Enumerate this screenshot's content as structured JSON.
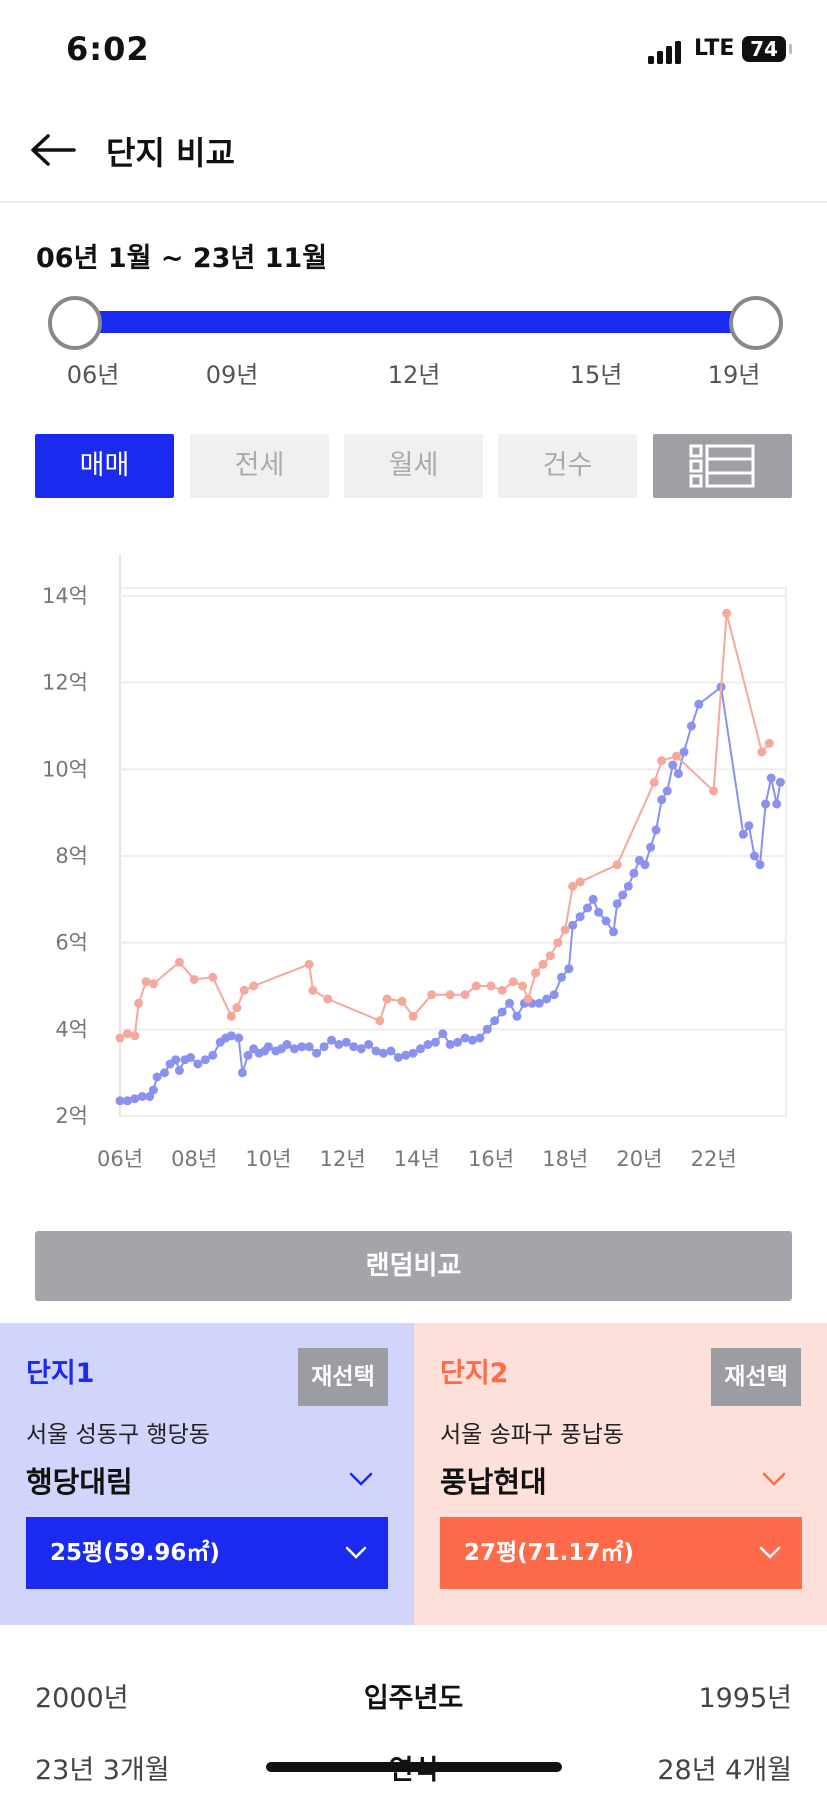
{
  "status": {
    "time": "6:02",
    "network": "LTE",
    "battery": "74"
  },
  "header": {
    "title": "단지 비교"
  },
  "range": {
    "label": "06년 1월 ~ 23년 11월",
    "ticks": [
      "06년",
      "09년",
      "12년",
      "15년",
      "19년"
    ],
    "start_fraction": 0.0,
    "end_fraction": 1.0
  },
  "tabs": [
    {
      "label": "매매",
      "active": true
    },
    {
      "label": "전세",
      "active": false
    },
    {
      "label": "월세",
      "active": false
    },
    {
      "label": "건수",
      "active": false
    }
  ],
  "colors": {
    "accent": "#1b2af0",
    "complex1": "#8a91ee",
    "complex2": "#f4a99c",
    "complex2_accent": "#ff6a4a"
  },
  "chart_data": {
    "type": "line",
    "x_tick_labels": [
      "06년",
      "08년",
      "10년",
      "12년",
      "14년",
      "16년",
      "18년",
      "20년",
      "22년"
    ],
    "y_tick_labels": [
      "2억",
      "4억",
      "6억",
      "8억",
      "10억",
      "12억",
      "14억"
    ],
    "x_ticks": [
      2006,
      2008,
      2010,
      2012,
      2014,
      2016,
      2018,
      2020,
      2022
    ],
    "y_ticks": [
      2,
      4,
      6,
      8,
      10,
      12,
      14
    ],
    "xlim": [
      2006.0,
      2023.95
    ],
    "ylim": [
      2,
      14
    ],
    "grid": true,
    "series": [
      {
        "points": [
          [
            2006.0,
            2.35
          ],
          [
            2006.2,
            2.35
          ],
          [
            2006.4,
            2.4
          ],
          [
            2006.6,
            2.45
          ],
          [
            2006.8,
            2.45
          ],
          [
            2006.9,
            2.6
          ],
          [
            2007.0,
            2.9
          ],
          [
            2007.2,
            3.0
          ],
          [
            2007.35,
            3.2
          ],
          [
            2007.5,
            3.3
          ],
          [
            2007.6,
            3.05
          ],
          [
            2007.75,
            3.3
          ],
          [
            2007.9,
            3.35
          ],
          [
            2008.1,
            3.2
          ],
          [
            2008.3,
            3.3
          ],
          [
            2008.5,
            3.4
          ],
          [
            2008.7,
            3.7
          ],
          [
            2008.85,
            3.8
          ],
          [
            2009.0,
            3.85
          ],
          [
            2009.2,
            3.8
          ],
          [
            2009.3,
            3.0
          ],
          [
            2009.45,
            3.4
          ],
          [
            2009.6,
            3.55
          ],
          [
            2009.75,
            3.45
          ],
          [
            2009.9,
            3.5
          ],
          [
            2010.0,
            3.6
          ],
          [
            2010.2,
            3.5
          ],
          [
            2010.35,
            3.55
          ],
          [
            2010.5,
            3.65
          ],
          [
            2010.7,
            3.55
          ],
          [
            2010.9,
            3.6
          ],
          [
            2011.1,
            3.6
          ],
          [
            2011.3,
            3.45
          ],
          [
            2011.5,
            3.6
          ],
          [
            2011.7,
            3.75
          ],
          [
            2011.9,
            3.65
          ],
          [
            2012.1,
            3.7
          ],
          [
            2012.3,
            3.6
          ],
          [
            2012.5,
            3.55
          ],
          [
            2012.7,
            3.65
          ],
          [
            2012.9,
            3.5
          ],
          [
            2013.1,
            3.45
          ],
          [
            2013.3,
            3.5
          ],
          [
            2013.5,
            3.35
          ],
          [
            2013.7,
            3.4
          ],
          [
            2013.9,
            3.45
          ],
          [
            2014.1,
            3.55
          ],
          [
            2014.3,
            3.65
          ],
          [
            2014.5,
            3.7
          ],
          [
            2014.7,
            3.9
          ],
          [
            2014.9,
            3.65
          ],
          [
            2015.1,
            3.7
          ],
          [
            2015.3,
            3.8
          ],
          [
            2015.5,
            3.75
          ],
          [
            2015.7,
            3.8
          ],
          [
            2015.9,
            4.0
          ],
          [
            2016.1,
            4.2
          ],
          [
            2016.3,
            4.4
          ],
          [
            2016.5,
            4.6
          ],
          [
            2016.7,
            4.3
          ],
          [
            2016.9,
            4.6
          ],
          [
            2017.1,
            4.6
          ],
          [
            2017.3,
            4.6
          ],
          [
            2017.5,
            4.7
          ],
          [
            2017.7,
            4.8
          ],
          [
            2017.9,
            5.2
          ],
          [
            2018.1,
            5.4
          ],
          [
            2018.2,
            6.4
          ],
          [
            2018.4,
            6.6
          ],
          [
            2018.6,
            6.8
          ],
          [
            2018.75,
            7.0
          ],
          [
            2018.9,
            6.7
          ],
          [
            2019.1,
            6.5
          ],
          [
            2019.3,
            6.25
          ],
          [
            2019.4,
            6.9
          ],
          [
            2019.55,
            7.1
          ],
          [
            2019.7,
            7.3
          ],
          [
            2019.85,
            7.6
          ],
          [
            2020.0,
            7.9
          ],
          [
            2020.15,
            7.8
          ],
          [
            2020.3,
            8.2
          ],
          [
            2020.45,
            8.6
          ],
          [
            2020.6,
            9.3
          ],
          [
            2020.75,
            9.5
          ],
          [
            2020.9,
            10.1
          ],
          [
            2021.05,
            9.9
          ],
          [
            2021.2,
            10.4
          ],
          [
            2021.4,
            11.0
          ],
          [
            2021.6,
            11.5
          ],
          [
            2022.2,
            11.9
          ],
          [
            2022.8,
            8.5
          ],
          [
            2022.95,
            8.7
          ],
          [
            2023.1,
            8.0
          ],
          [
            2023.25,
            7.8
          ],
          [
            2023.4,
            9.2
          ],
          [
            2023.55,
            9.8
          ],
          [
            2023.7,
            9.2
          ],
          [
            2023.8,
            9.7
          ]
        ]
      },
      {
        "points": [
          [
            2006.0,
            3.8
          ],
          [
            2006.2,
            3.9
          ],
          [
            2006.4,
            3.85
          ],
          [
            2006.5,
            4.6
          ],
          [
            2006.7,
            5.1
          ],
          [
            2006.9,
            5.05
          ],
          [
            2007.6,
            5.55
          ],
          [
            2008.0,
            5.15
          ],
          [
            2008.5,
            5.2
          ],
          [
            2009.0,
            4.3
          ],
          [
            2009.15,
            4.5
          ],
          [
            2009.35,
            4.9
          ],
          [
            2009.6,
            5.0
          ],
          [
            2011.1,
            5.5
          ],
          [
            2011.2,
            4.9
          ],
          [
            2011.6,
            4.7
          ],
          [
            2013.0,
            4.2
          ],
          [
            2013.2,
            4.7
          ],
          [
            2013.6,
            4.65
          ],
          [
            2013.9,
            4.3
          ],
          [
            2014.4,
            4.8
          ],
          [
            2014.9,
            4.8
          ],
          [
            2015.3,
            4.8
          ],
          [
            2015.6,
            5.0
          ],
          [
            2016.0,
            5.0
          ],
          [
            2016.3,
            4.9
          ],
          [
            2016.6,
            5.1
          ],
          [
            2016.85,
            5.0
          ],
          [
            2017.0,
            4.7
          ],
          [
            2017.2,
            5.3
          ],
          [
            2017.4,
            5.5
          ],
          [
            2017.6,
            5.7
          ],
          [
            2017.8,
            6.0
          ],
          [
            2018.0,
            6.3
          ],
          [
            2018.2,
            7.3
          ],
          [
            2018.4,
            7.4
          ],
          [
            2019.4,
            7.8
          ],
          [
            2020.4,
            9.7
          ],
          [
            2020.6,
            10.2
          ],
          [
            2021.0,
            10.3
          ],
          [
            2022.0,
            9.5
          ],
          [
            2022.35,
            13.6
          ],
          [
            2023.3,
            10.4
          ],
          [
            2023.5,
            10.6
          ]
        ]
      }
    ]
  },
  "random_button": "랜덤비교",
  "complex1": {
    "label": "단지1",
    "reselect": "재선택",
    "region": "서울 성동구 행당동",
    "name": "행당대림",
    "size": "25평(59.96㎡)"
  },
  "complex2": {
    "label": "단지2",
    "reselect": "재선택",
    "region": "서울 송파구 풍납동",
    "name": "풍납현대",
    "size": "27평(71.17㎡)"
  },
  "info_rows": [
    {
      "left": "2000년",
      "label": "입주년도",
      "right": "1995년"
    },
    {
      "left": "23년 3개월",
      "label": "연식",
      "right": "28년 4개월"
    }
  ]
}
